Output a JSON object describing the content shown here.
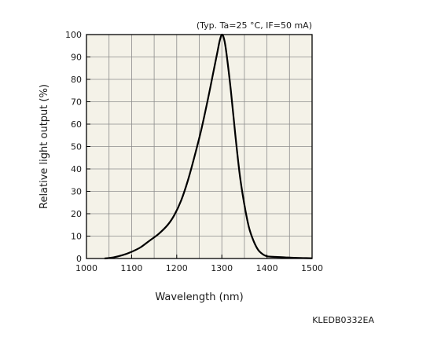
{
  "chart_data": {
    "type": "line",
    "title": "",
    "annotation": "(Typ. Ta=25 °C, IF=50 mA)",
    "xlabel": "Wavelength (nm)",
    "ylabel": "Relative light output (%)",
    "xlim": [
      1000,
      1500
    ],
    "ylim": [
      0,
      100
    ],
    "x_ticks": [
      1000,
      1100,
      1200,
      1300,
      1400,
      1500
    ],
    "y_ticks": [
      0,
      10,
      20,
      30,
      40,
      50,
      60,
      70,
      80,
      90,
      100
    ],
    "grid": true,
    "colors": {
      "line": "#000000",
      "grid": "#8c8c8c",
      "plot_bg": "#f4f2e8",
      "frame": "#000000"
    },
    "series": [
      {
        "x": [
          1040,
          1060,
          1080,
          1100,
          1120,
          1140,
          1160,
          1180,
          1195,
          1210,
          1225,
          1240,
          1255,
          1270,
          1280,
          1290,
          1295,
          1300,
          1305,
          1310,
          1320,
          1330,
          1340,
          1350,
          1360,
          1370,
          1380,
          1390,
          1400,
          1420,
          1440,
          1460,
          1480,
          1500
        ],
        "y": [
          0,
          0.5,
          1.5,
          3,
          5,
          8,
          11,
          15,
          19.5,
          26,
          35,
          46,
          58,
          72,
          82,
          92,
          97,
          100,
          98,
          92,
          75,
          55,
          37,
          24,
          14,
          8,
          4,
          2,
          1,
          0.7,
          0.5,
          0.3,
          0.2,
          0.1
        ]
      }
    ]
  },
  "figure_code": "KLEDB0332EA"
}
